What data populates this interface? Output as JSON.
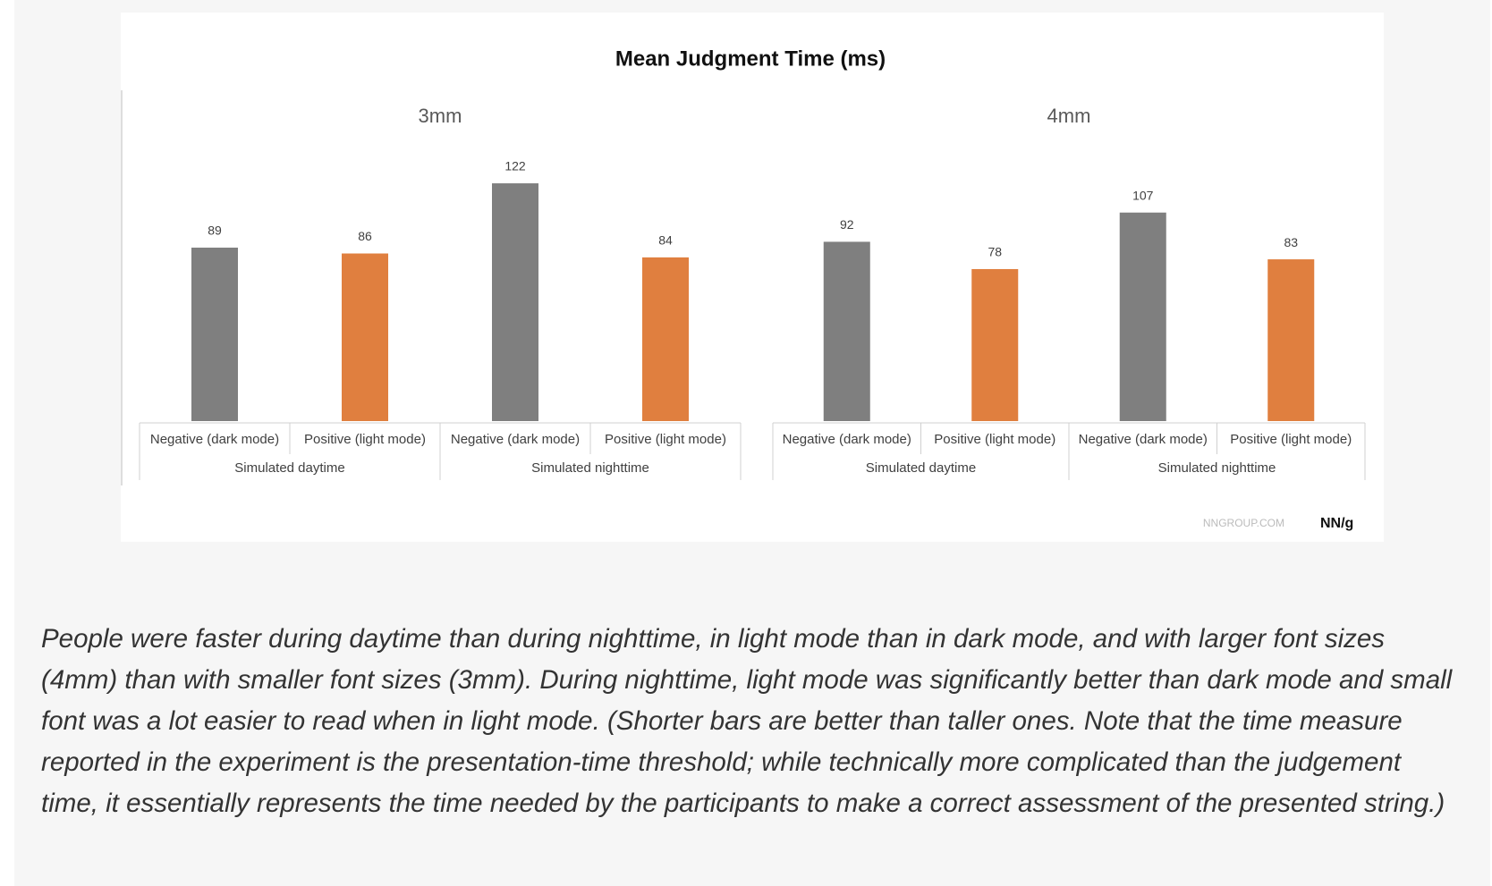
{
  "figure_title": "Mean Judgment Time (ms)",
  "chart_data": [
    {
      "type": "bar",
      "title": "3mm",
      "categories": [
        "Negative (dark mode)",
        "Positive (light mode)",
        "Negative (dark mode)",
        "Positive (light mode)"
      ],
      "groups": [
        "Simulated daytime",
        "Simulated nighttime"
      ],
      "values": [
        89,
        86,
        122,
        84
      ],
      "colors": [
        "#7f7f7f",
        "#e07f3f",
        "#7f7f7f",
        "#e07f3f"
      ]
    },
    {
      "type": "bar",
      "title": "4mm",
      "categories": [
        "Negative (dark mode)",
        "Positive (light mode)",
        "Negative (dark mode)",
        "Positive (light mode)"
      ],
      "groups": [
        "Simulated daytime",
        "Simulated nighttime"
      ],
      "values": [
        92,
        78,
        107,
        83
      ],
      "colors": [
        "#7f7f7f",
        "#e07f3f",
        "#7f7f7f",
        "#e07f3f"
      ]
    }
  ],
  "watermark": "NNGROUP.COM",
  "logo": "NN/g",
  "caption": "People were faster during daytime than during nighttime, in light mode than in dark mode, and with larger font sizes (4mm) than with smaller font sizes (3mm). During nighttime, light mode was significantly better than dark mode and small font was a lot easier to read when in light mode. (Shorter bars are better than taller ones. Note that the time measure reported in the experiment is the presentation-time threshold; while technically more complicated than the judgement time, it essentially represents the time needed by the participants to make a correct assessment of the presented string.)"
}
